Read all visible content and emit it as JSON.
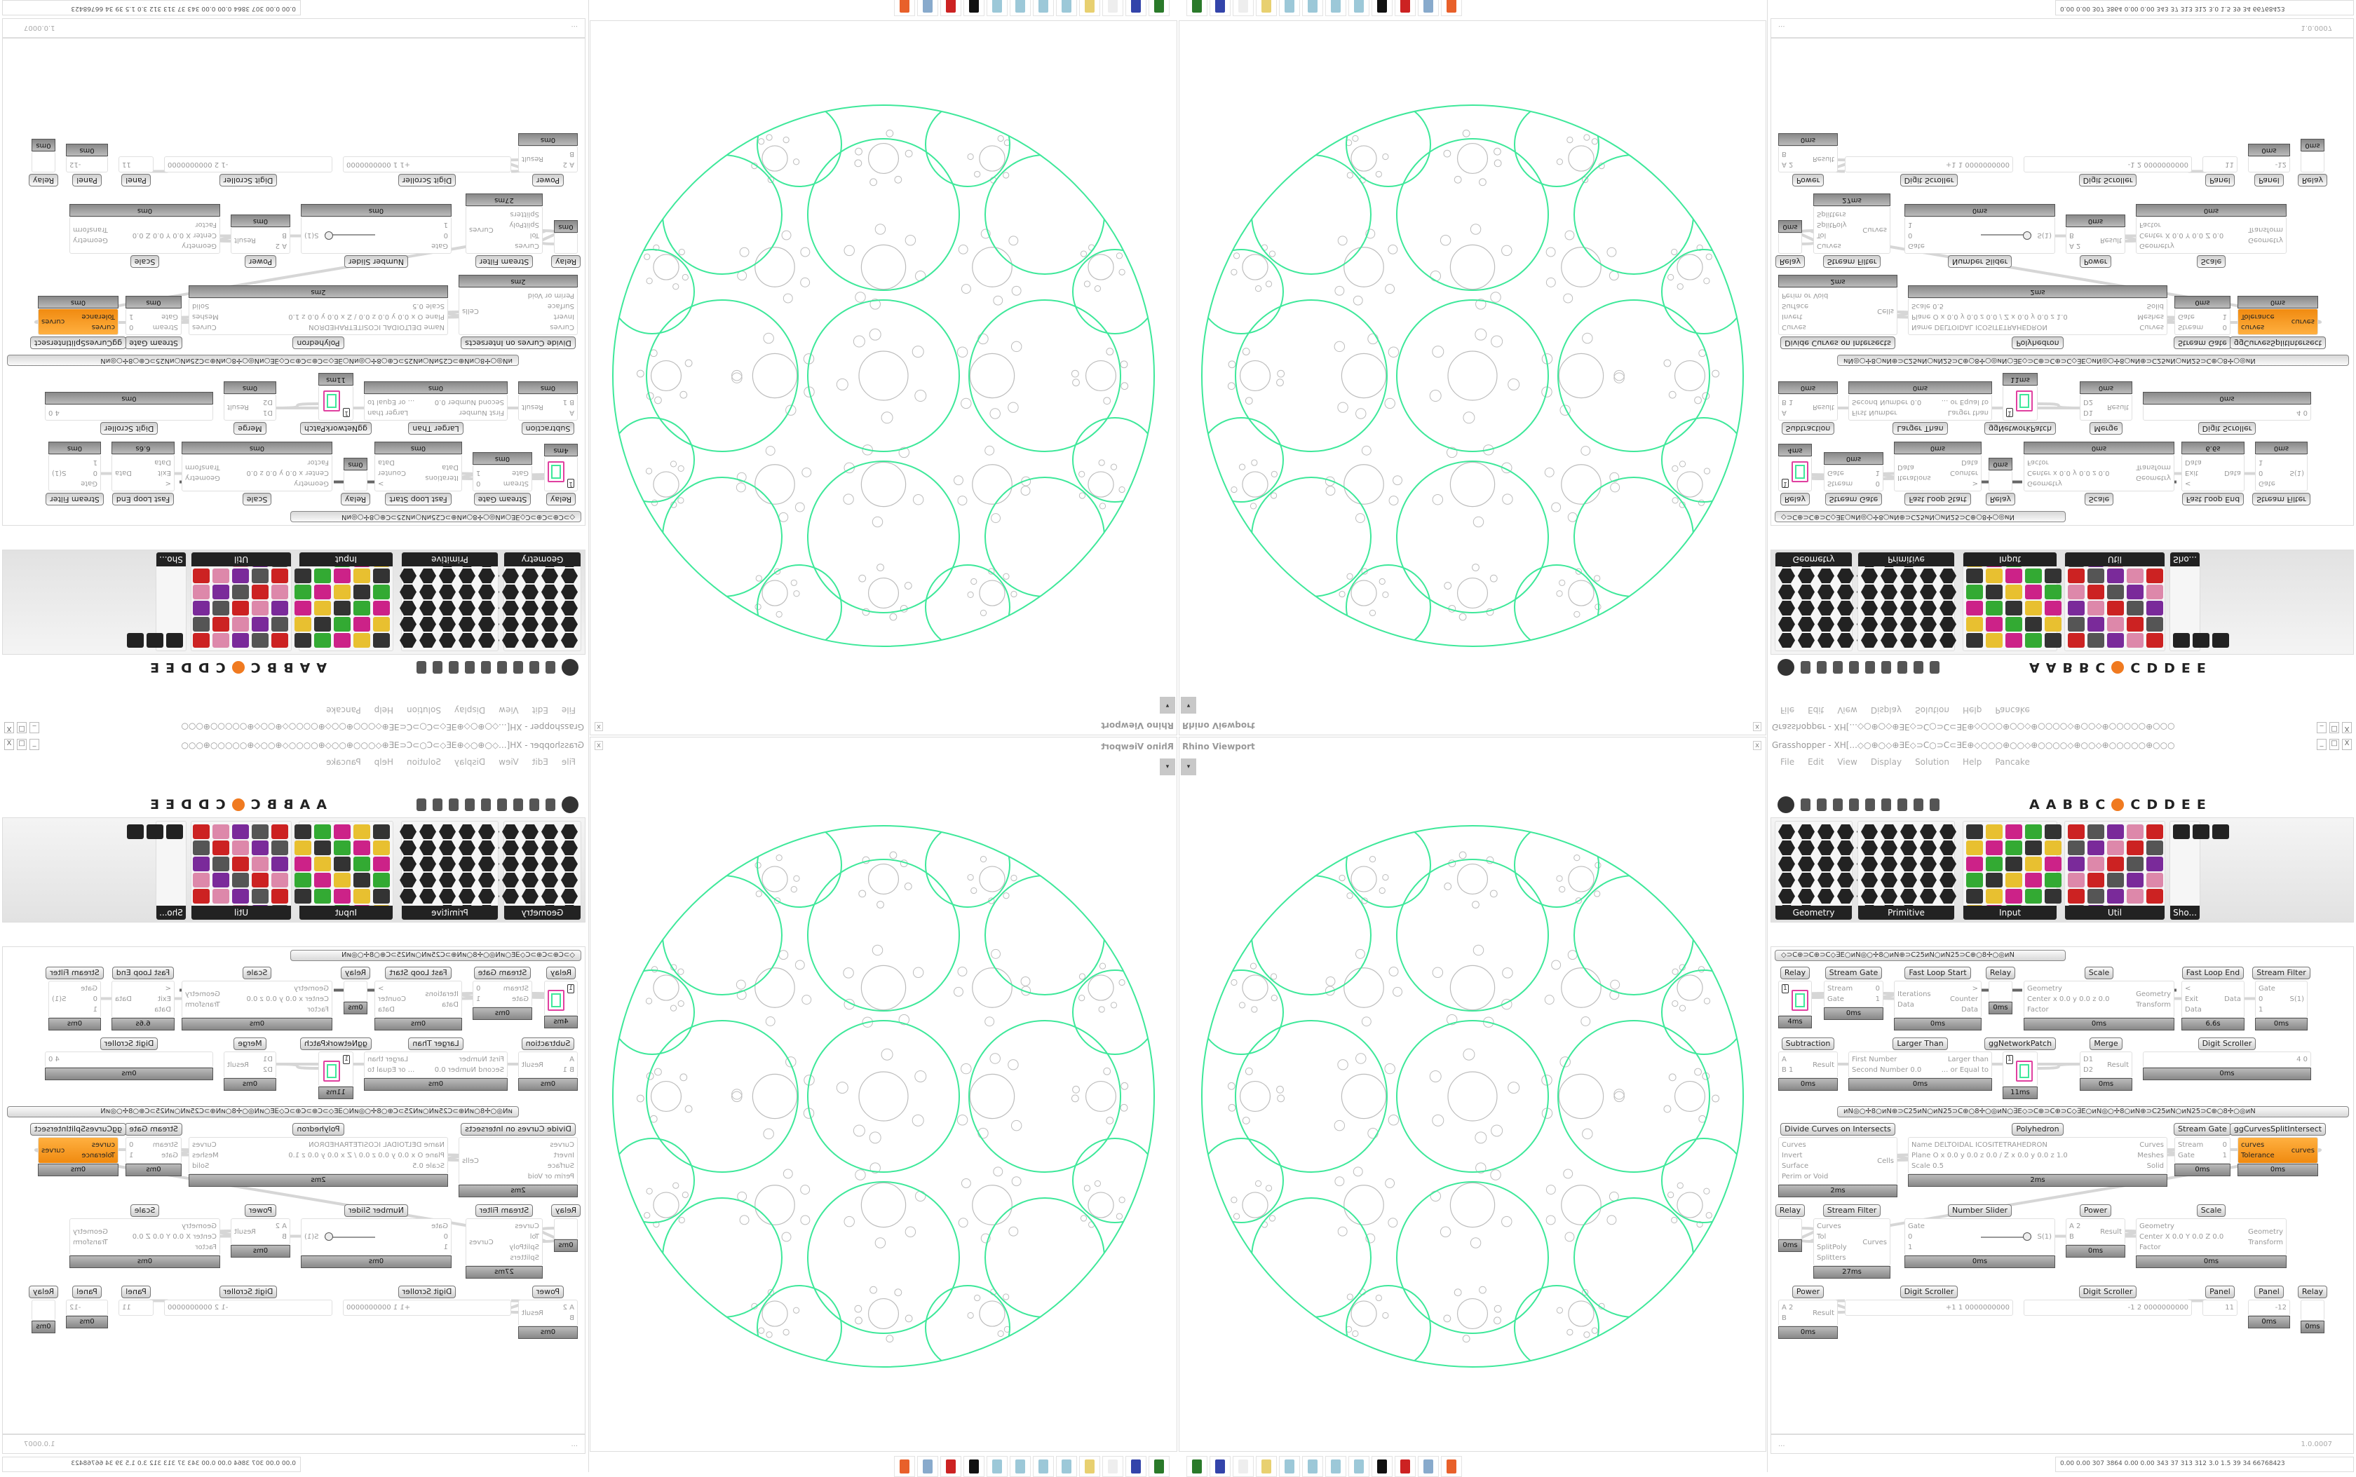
{
  "viewport": {
    "title": "Rhino Viewport",
    "close": "x",
    "dropdown": "▾"
  },
  "taskbar": {
    "icons": [
      "rhino-launcher-icon",
      "save64-icon",
      "blank-icon",
      "folder-icon",
      "notepad-icon",
      "notepad-icon",
      "notepad-icon",
      "notepad-icon",
      "inkscape-icon",
      "game-icon",
      "calculator-icon",
      "firefox-icon"
    ]
  },
  "grasshopper": {
    "title": "Grasshopper - XH[...◇○⊕○◇⊕∃E◇⊃C○⊃C⊂∃E⊕◇○○○⊕○○◇⊕○○○○◇⊕○○◇⊕○○○○○⊕○○○",
    "window_buttons": [
      "_",
      "□",
      "X"
    ],
    "menu": [
      "File",
      "Edit",
      "View",
      "Display",
      "Solution",
      "Help",
      "Pancake"
    ],
    "tab_letters": [
      "A",
      "A",
      "B",
      "B",
      "C",
      "C",
      "D",
      "D",
      "E",
      "E"
    ],
    "panels": [
      {
        "label": "Geometry"
      },
      {
        "label": "Primitive"
      },
      {
        "label": "Input"
      },
      {
        "label": "Util"
      },
      {
        "label": "Sho..."
      }
    ],
    "zoom": "100%",
    "groups": [
      "◇⊃C⊕⊃C⊕⊃C◇∃E○ᴎN◎○✢8○ᴎN⊕⊃C25ᴎN○ᴎN25⊃C⊕○8✢○◎ᴎN",
      "ᴎN◎○✢8○ᴎN⊕⊃C25ᴎN○ᴎN25⊃C⊕○8✢○◎ᴎN○∃E◇⊃C⊕⊃C⊕⊃C◇∃E○ᴎN◎○✢8○ᴎN⊕⊃C25ᴎN○ᴎN25⊃C⊕○8✢○◎ᴎN"
    ],
    "nodes": [
      {
        "label": "Stream Gate",
        "inputs": [
          "Stream",
          "Gate"
        ],
        "outputs": [
          "0",
          "1"
        ],
        "time": "0ms"
      },
      {
        "label": "Relay",
        "inputs": [],
        "outputs": [],
        "time": "4ms",
        "value": "1"
      },
      {
        "label": "Subtraction",
        "inputs": [
          "A",
          "B 1"
        ],
        "outputs": [
          "Result"
        ],
        "time": "0ms"
      },
      {
        "label": "Fast Loop Start",
        "inputs": [
          "Iterations",
          "Data"
        ],
        "outputs": [
          ">",
          "Counter",
          "Data"
        ],
        "time": "0ms"
      },
      {
        "label": "Relay",
        "inputs": [],
        "outputs": [],
        "time": "0ms"
      },
      {
        "label": "Scale",
        "inputs": [
          "Geometry",
          "Center x 0.0 y 0.0 z 0.0",
          "Factor"
        ],
        "outputs": [
          "Geometry",
          "Transform"
        ],
        "time": "0ms"
      },
      {
        "label": "Fast Loop End",
        "inputs": [
          "<",
          "Exit",
          "Data"
        ],
        "outputs": [
          "Data"
        ],
        "time": "6.6s"
      },
      {
        "label": "Stream Filter",
        "inputs": [
          "Gate",
          "0",
          "1"
        ],
        "outputs": [
          "S(1)"
        ],
        "time": "0ms"
      },
      {
        "label": "Larger Than",
        "inputs": [
          "First Number",
          "Second Number 0.0"
        ],
        "outputs": [
          "Larger than",
          "... or Equal to"
        ],
        "time": "0ms"
      },
      {
        "label": "ggNetworkPatch",
        "inputs": [],
        "outputs": [],
        "time": "11ms",
        "value": "1"
      },
      {
        "label": "Merge",
        "inputs": [
          "D1",
          "D2"
        ],
        "outputs": [
          "Result"
        ],
        "time": "0ms"
      },
      {
        "label": "Digit Scroller",
        "inputs": [],
        "outputs": [
          "4 0"
        ],
        "time": "0ms"
      },
      {
        "label": "Divide Curves on Intersects",
        "inputs": [
          "Curves",
          "Invert",
          "Surface",
          "Perim or Void"
        ],
        "outputs": [
          "Cells"
        ],
        "time": "2ms"
      },
      {
        "label": "Polyhedron",
        "inputs": [
          "Name DELTOIDAL ICOSITETRAHEDRON",
          "Plane  O x 0.0 y 0.0 z 0.0 / Z x 0.0 y 0.0 z 1.0",
          "Scale 0.5"
        ],
        "outputs": [
          "Curves",
          "Meshes",
          "Solid"
        ],
        "time": "2ms"
      },
      {
        "label": "Relay",
        "inputs": [],
        "outputs": [],
        "time": "0ms"
      },
      {
        "label": "Relay",
        "inputs": [],
        "outputs": [],
        "time": "0ms"
      },
      {
        "label": "Stream Gate",
        "inputs": [
          "Stream",
          "Gate"
        ],
        "outputs": [
          "0",
          "1"
        ],
        "time": "0ms"
      },
      {
        "label": "ggCurvesSplitIntersect",
        "inputs": [
          "curves",
          "Tolerance"
        ],
        "outputs": [
          "curves"
        ],
        "time": "0ms"
      },
      {
        "label": "Stream Filter",
        "inputs": [
          "Curves",
          "Tol",
          "SplitPoly",
          "Splitters"
        ],
        "outputs": [
          "Curves"
        ],
        "time": "27ms"
      },
      {
        "label": "Number Slider",
        "inputs": [
          "Gate",
          "0",
          "1"
        ],
        "outputs": [
          "S(1)"
        ],
        "time": "0ms"
      },
      {
        "label": "Power",
        "inputs": [
          "A 2",
          "B"
        ],
        "outputs": [
          "Result"
        ],
        "time": "0ms"
      },
      {
        "label": "Scale",
        "inputs": [
          "Geometry",
          "Center X 0.0 Y 0.0 Z 0.0",
          "Factor"
        ],
        "outputs": [
          "Geometry",
          "Transform"
        ],
        "time": "0ms"
      },
      {
        "label": "Power",
        "inputs": [
          "A 2",
          "B"
        ],
        "outputs": [
          "Result"
        ],
        "time": "0ms"
      },
      {
        "label": "Digit Scroller",
        "inputs": [],
        "outputs": [
          "+1 1 0000000000"
        ],
        "time": ""
      },
      {
        "label": "Digit Scroller",
        "inputs": [],
        "outputs": [
          "-1 2 0000000000"
        ],
        "time": ""
      },
      {
        "label": "Panel",
        "inputs": [],
        "outputs": [
          "11"
        ],
        "time": ""
      },
      {
        "label": "Panel",
        "inputs": [],
        "outputs": [
          "-12"
        ],
        "time": "0ms"
      }
    ],
    "slider": {
      "min": "0.0",
      "max": "1.0",
      "digits": "0",
      "value": "1"
    },
    "status_left": "...",
    "version": "1.0.0007",
    "stats": "0.00 0.00 307 3864 0.00 0.00 343 37 313 312 3.0 1.5 39 34 66768423"
  },
  "colors": {
    "accent_green": "#3ee89a",
    "component_orange": "#f39a22",
    "curve_gray": "#bdbdbd"
  }
}
